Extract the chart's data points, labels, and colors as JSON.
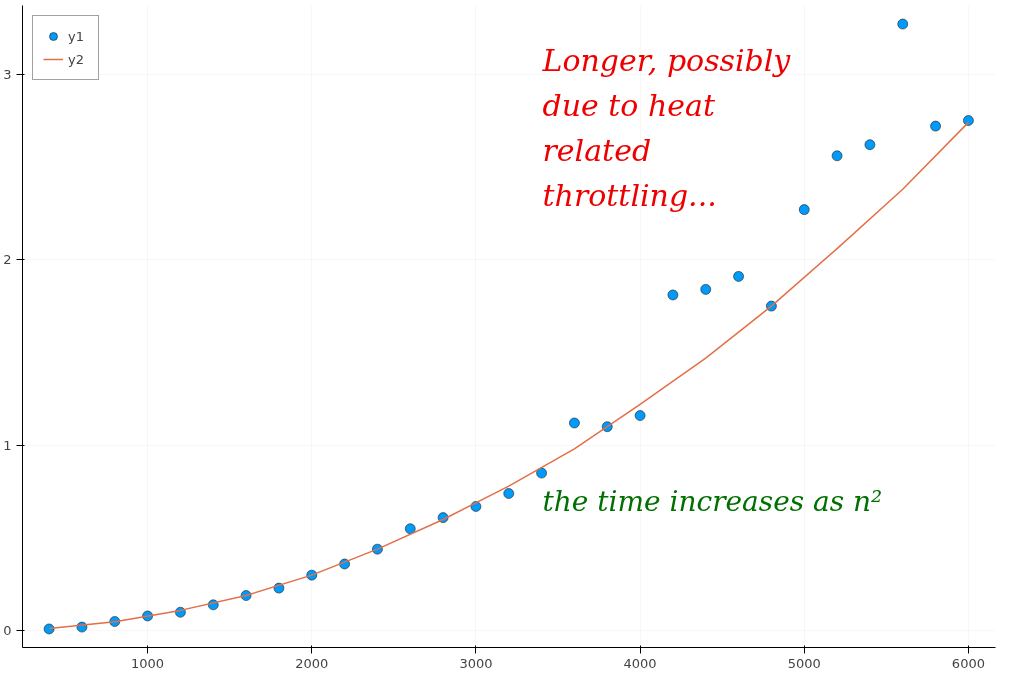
{
  "chart_data": {
    "type": "scatter",
    "x": [
      400,
      600,
      800,
      1000,
      1200,
      1400,
      1600,
      1800,
      2000,
      2200,
      2400,
      2600,
      2800,
      3000,
      3200,
      3400,
      3600,
      3800,
      4000,
      4200,
      4400,
      4600,
      4800,
      5000,
      5200,
      5400,
      5600,
      5800,
      6000
    ],
    "series": [
      {
        "name": "y1",
        "color": "#009afa",
        "marker": "circle",
        "values": [
          0.01,
          0.02,
          0.05,
          0.08,
          0.1,
          0.14,
          0.19,
          0.23,
          0.3,
          0.36,
          0.44,
          0.55,
          0.61,
          0.67,
          0.74,
          0.85,
          1.12,
          1.1,
          1.16,
          1.81,
          1.84,
          1.91,
          1.75,
          2.27,
          2.56,
          2.62,
          3.27,
          2.72,
          2.75
        ]
      },
      {
        "name": "y2",
        "color": "#e36f47",
        "type": "line",
        "line_style": "solid",
        "x": [
          400,
          800,
          1200,
          1600,
          2000,
          2400,
          2800,
          3200,
          3600,
          4000,
          4400,
          4800,
          5200,
          5600,
          6000
        ],
        "values": [
          0.012,
          0.049,
          0.11,
          0.19,
          0.3,
          0.44,
          0.6,
          0.78,
          0.98,
          1.22,
          1.47,
          1.75,
          2.06,
          2.38,
          2.74
        ]
      }
    ],
    "xlim": [
      238,
      6165
    ],
    "ylim": [
      -0.09,
      3.37
    ],
    "xticks": [
      1000,
      2000,
      3000,
      4000,
      5000,
      6000
    ],
    "yticks": [
      0,
      1,
      2,
      3
    ],
    "grid": true,
    "legend": "top left",
    "annotations": [
      "Longer, possibly due to heat related throttling...",
      "the time increases as n²"
    ]
  }
}
